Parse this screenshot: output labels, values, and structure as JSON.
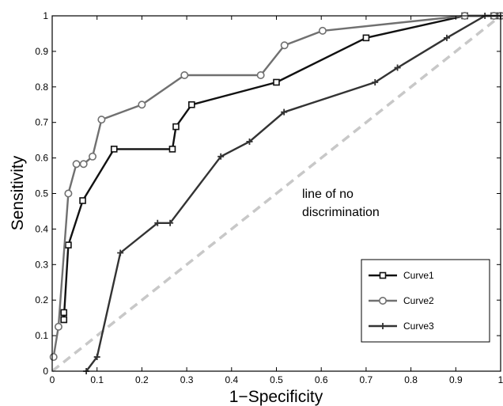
{
  "chart_data": {
    "type": "line",
    "title": "",
    "xlabel": "1−Specificity",
    "ylabel": "Sensitivity",
    "xlim": [
      0,
      1
    ],
    "ylim": [
      0,
      1
    ],
    "xticks": [
      "0",
      "0.1",
      "0.2",
      "0.3",
      "0.4",
      "0.5",
      "0.6",
      "0.7",
      "0.8",
      "0.9",
      "1"
    ],
    "yticks": [
      "0",
      "0.1",
      "0.2",
      "0.3",
      "0.4",
      "0.5",
      "0.6",
      "0.7",
      "0.8",
      "0.9",
      "1"
    ],
    "grid": false,
    "legend": "lower-right",
    "annotation": [
      "line of no",
      "discrimination"
    ],
    "reference_line": {
      "x": [
        0,
        1
      ],
      "y": [
        0,
        1
      ],
      "color": "#c8c8c8"
    },
    "series": [
      {
        "name": "Curve1",
        "color": "#111111",
        "marker": "square",
        "x": [
          0.026,
          0.026,
          0.026,
          0.036,
          0.068,
          0.138,
          0.268,
          0.276,
          0.311,
          0.5,
          0.7,
          0.92,
          0.985,
          1.0
        ],
        "y": [
          0.145,
          0.165,
          0.145,
          0.355,
          0.48,
          0.625,
          0.625,
          0.688,
          0.75,
          0.813,
          0.938,
          1.0,
          1.0,
          1.0
        ]
      },
      {
        "name": "Curve2",
        "color": "#707070",
        "marker": "circle",
        "x": [
          0.003,
          0.014,
          0.036,
          0.054,
          0.07,
          0.09,
          0.11,
          0.2,
          0.295,
          0.465,
          0.518,
          0.603,
          0.92,
          0.985,
          1.0
        ],
        "y": [
          0.04,
          0.125,
          0.5,
          0.583,
          0.583,
          0.604,
          0.708,
          0.75,
          0.833,
          0.833,
          0.917,
          0.958,
          1.0,
          1.0,
          1.0
        ]
      },
      {
        "name": "Curve3",
        "color": "#333333",
        "marker": "plus",
        "x": [
          0.076,
          0.1,
          0.152,
          0.235,
          0.263,
          0.376,
          0.44,
          0.517,
          0.72,
          0.77,
          0.88,
          0.965,
          1.0
        ],
        "y": [
          0.0,
          0.04,
          0.333,
          0.417,
          0.417,
          0.604,
          0.646,
          0.729,
          0.813,
          0.854,
          0.938,
          1.0,
          1.0
        ]
      }
    ]
  }
}
